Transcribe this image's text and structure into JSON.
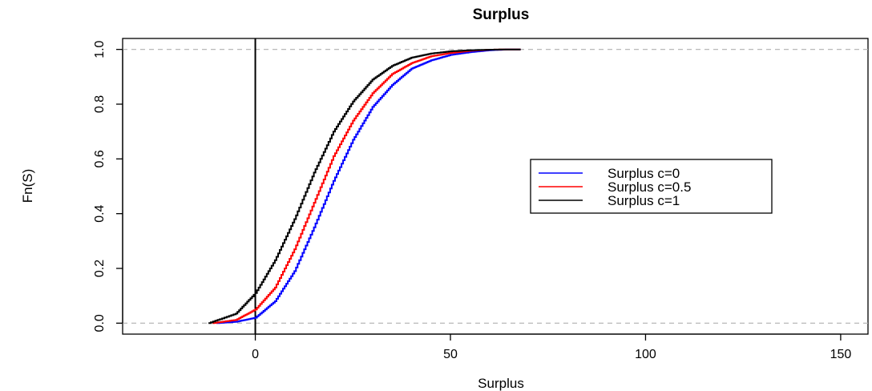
{
  "chart_data": {
    "type": "line",
    "title": "Surplus",
    "xlabel": "Surplus",
    "ylabel": "Fn(S)",
    "xlim": [
      -34,
      157
    ],
    "ylim": [
      -0.04,
      1.04
    ],
    "xticks": [
      0,
      50,
      100,
      150
    ],
    "xtick_labels": [
      "0",
      "50",
      "100",
      "150"
    ],
    "yticks": [
      0.0,
      0.2,
      0.4,
      0.6,
      0.8,
      1.0
    ],
    "ytick_labels": [
      "0.0",
      "0.2",
      "0.4",
      "0.6",
      "0.8",
      "1.0"
    ],
    "vertical_line_x": 0,
    "horizontal_dashed_lines_y": [
      0,
      1
    ],
    "legend_position": "right",
    "series": [
      {
        "name": "Surplus c=0",
        "color": "#0000ff",
        "x": [
          -10,
          -5,
          0,
          5,
          10,
          15,
          20,
          25,
          30,
          35,
          40,
          45,
          50,
          55,
          60,
          65,
          68
        ],
        "y": [
          0.0,
          0.005,
          0.02,
          0.08,
          0.19,
          0.35,
          0.52,
          0.67,
          0.79,
          0.87,
          0.93,
          0.96,
          0.98,
          0.99,
          0.997,
          1.0,
          1.0
        ]
      },
      {
        "name": "Surplus c=0.5",
        "color": "#ff0000",
        "x": [
          -11,
          -5,
          0,
          5,
          10,
          15,
          20,
          25,
          30,
          35,
          40,
          45,
          50,
          55,
          60,
          65,
          68
        ],
        "y": [
          0.0,
          0.012,
          0.05,
          0.13,
          0.27,
          0.44,
          0.61,
          0.74,
          0.84,
          0.91,
          0.95,
          0.975,
          0.987,
          0.995,
          0.999,
          1.0,
          1.0
        ]
      },
      {
        "name": "Surplus c=1",
        "color": "#000000",
        "x": [
          -12,
          -5,
          0,
          5,
          10,
          15,
          20,
          25,
          30,
          35,
          40,
          45,
          50,
          55,
          60,
          65,
          68
        ],
        "y": [
          0.0,
          0.035,
          0.11,
          0.23,
          0.38,
          0.55,
          0.7,
          0.81,
          0.89,
          0.94,
          0.97,
          0.985,
          0.993,
          0.997,
          0.999,
          1.0,
          1.0
        ]
      }
    ]
  }
}
